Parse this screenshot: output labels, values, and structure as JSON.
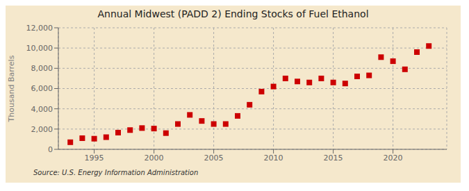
{
  "chart_data": {
    "type": "scatter",
    "title": "Annual Midwest (PADD 2) Ending Stocks of Fuel Ethanol",
    "ylabel": "Thousand Barrels",
    "annotations": [
      "Source: U.S. Energy Information Administration"
    ],
    "x": [
      1993,
      1994,
      1995,
      1996,
      1997,
      1998,
      1999,
      2000,
      2001,
      2002,
      2003,
      2004,
      2005,
      2006,
      2007,
      2008,
      2009,
      2010,
      2011,
      2012,
      2013,
      2014,
      2015,
      2016,
      2017,
      2018,
      2019,
      2020,
      2021,
      2022,
      2023
    ],
    "values": [
      700,
      1100,
      1050,
      1200,
      1650,
      1900,
      2100,
      2050,
      1600,
      2500,
      3400,
      2800,
      2500,
      2500,
      3300,
      4400,
      5700,
      6200,
      7000,
      6700,
      6600,
      7000,
      6600,
      6500,
      7200,
      7300,
      9100,
      8700,
      7900,
      9600,
      10200
    ],
    "color": "#cc0000",
    "marker": "square",
    "grid": true,
    "xlim": [
      1992,
      2024.5
    ],
    "ylim": [
      0,
      12000
    ],
    "xticks": [
      1995,
      2000,
      2005,
      2010,
      2015,
      2020
    ],
    "yticks": [
      0,
      {
        "value": 2000,
        "label": "2,000"
      },
      {
        "value": 4000,
        "label": "4,000"
      },
      {
        "value": 6000,
        "label": "6,000"
      },
      {
        "value": 8000,
        "label": "8,000"
      },
      {
        "value": 10000,
        "label": "10,000"
      },
      {
        "value": 12000,
        "label": "12,000"
      }
    ]
  }
}
